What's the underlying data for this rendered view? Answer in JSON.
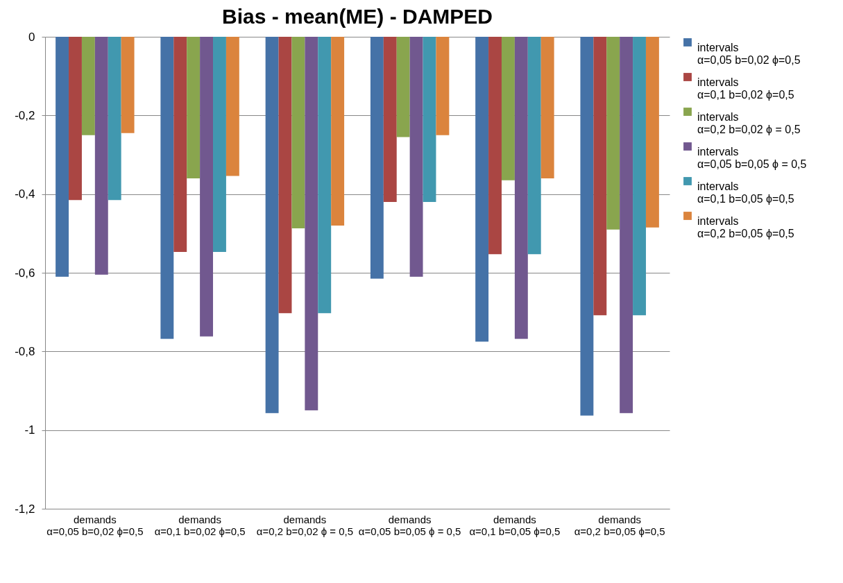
{
  "chart_data": {
    "type": "bar",
    "title": "Bias - mean(ME) - DAMPED",
    "categories": [
      "demands α=0,05 b=0,02 ϕ=0,5",
      "demands α=0,1 b=0,02 ϕ=0,5",
      "demands α=0,2 b=0,02 ϕ = 0,5",
      "demands α=0,05 b=0,05 ϕ = 0,5",
      "demands α=0,1 b=0,05 ϕ=0,5",
      "demands α=0,2 b=0,05 ϕ=0,5"
    ],
    "series": [
      {
        "name": "intervals α=0,05 b=0,02 ϕ=0,5",
        "color": "#4572a7",
        "values": [
          -0.61,
          -0.768,
          -0.957,
          -0.615,
          -0.775,
          -0.963
        ]
      },
      {
        "name": "intervals α=0,1 b=0,02 ϕ=0,5",
        "color": "#aa4643",
        "values": [
          -0.415,
          -0.547,
          -0.703,
          -0.42,
          -0.553,
          -0.708
        ]
      },
      {
        "name": "intervals α=0,2 b=0,02 ϕ = 0,5",
        "color": "#89a54e",
        "values": [
          -0.25,
          -0.36,
          -0.487,
          -0.255,
          -0.365,
          -0.49
        ]
      },
      {
        "name": "intervals α=0,05 b=0,05 ϕ = 0,5",
        "color": "#71588f",
        "values": [
          -0.605,
          -0.762,
          -0.95,
          -0.61,
          -0.768,
          -0.957
        ]
      },
      {
        "name": "intervals α=0,1 b=0,05 ϕ=0,5",
        "color": "#4198af",
        "values": [
          -0.415,
          -0.547,
          -0.703,
          -0.42,
          -0.553,
          -0.708
        ]
      },
      {
        "name": "intervals α=0,2 b=0,05 ϕ=0,5",
        "color": "#db843d",
        "values": [
          -0.245,
          -0.354,
          -0.48,
          -0.25,
          -0.36,
          -0.485
        ]
      }
    ],
    "ylim": [
      -1.2,
      0
    ],
    "yticks": [
      0,
      {
        "value": -0.2,
        "label": "-0,2"
      },
      {
        "value": -0.4,
        "label": "-0,4"
      },
      {
        "value": -0.6,
        "label": "-0,6"
      },
      {
        "value": -0.8,
        "label": "-0,8"
      },
      -1,
      {
        "value": -1.2,
        "label": "-1,2"
      }
    ],
    "grid": "y",
    "legend": "right"
  }
}
